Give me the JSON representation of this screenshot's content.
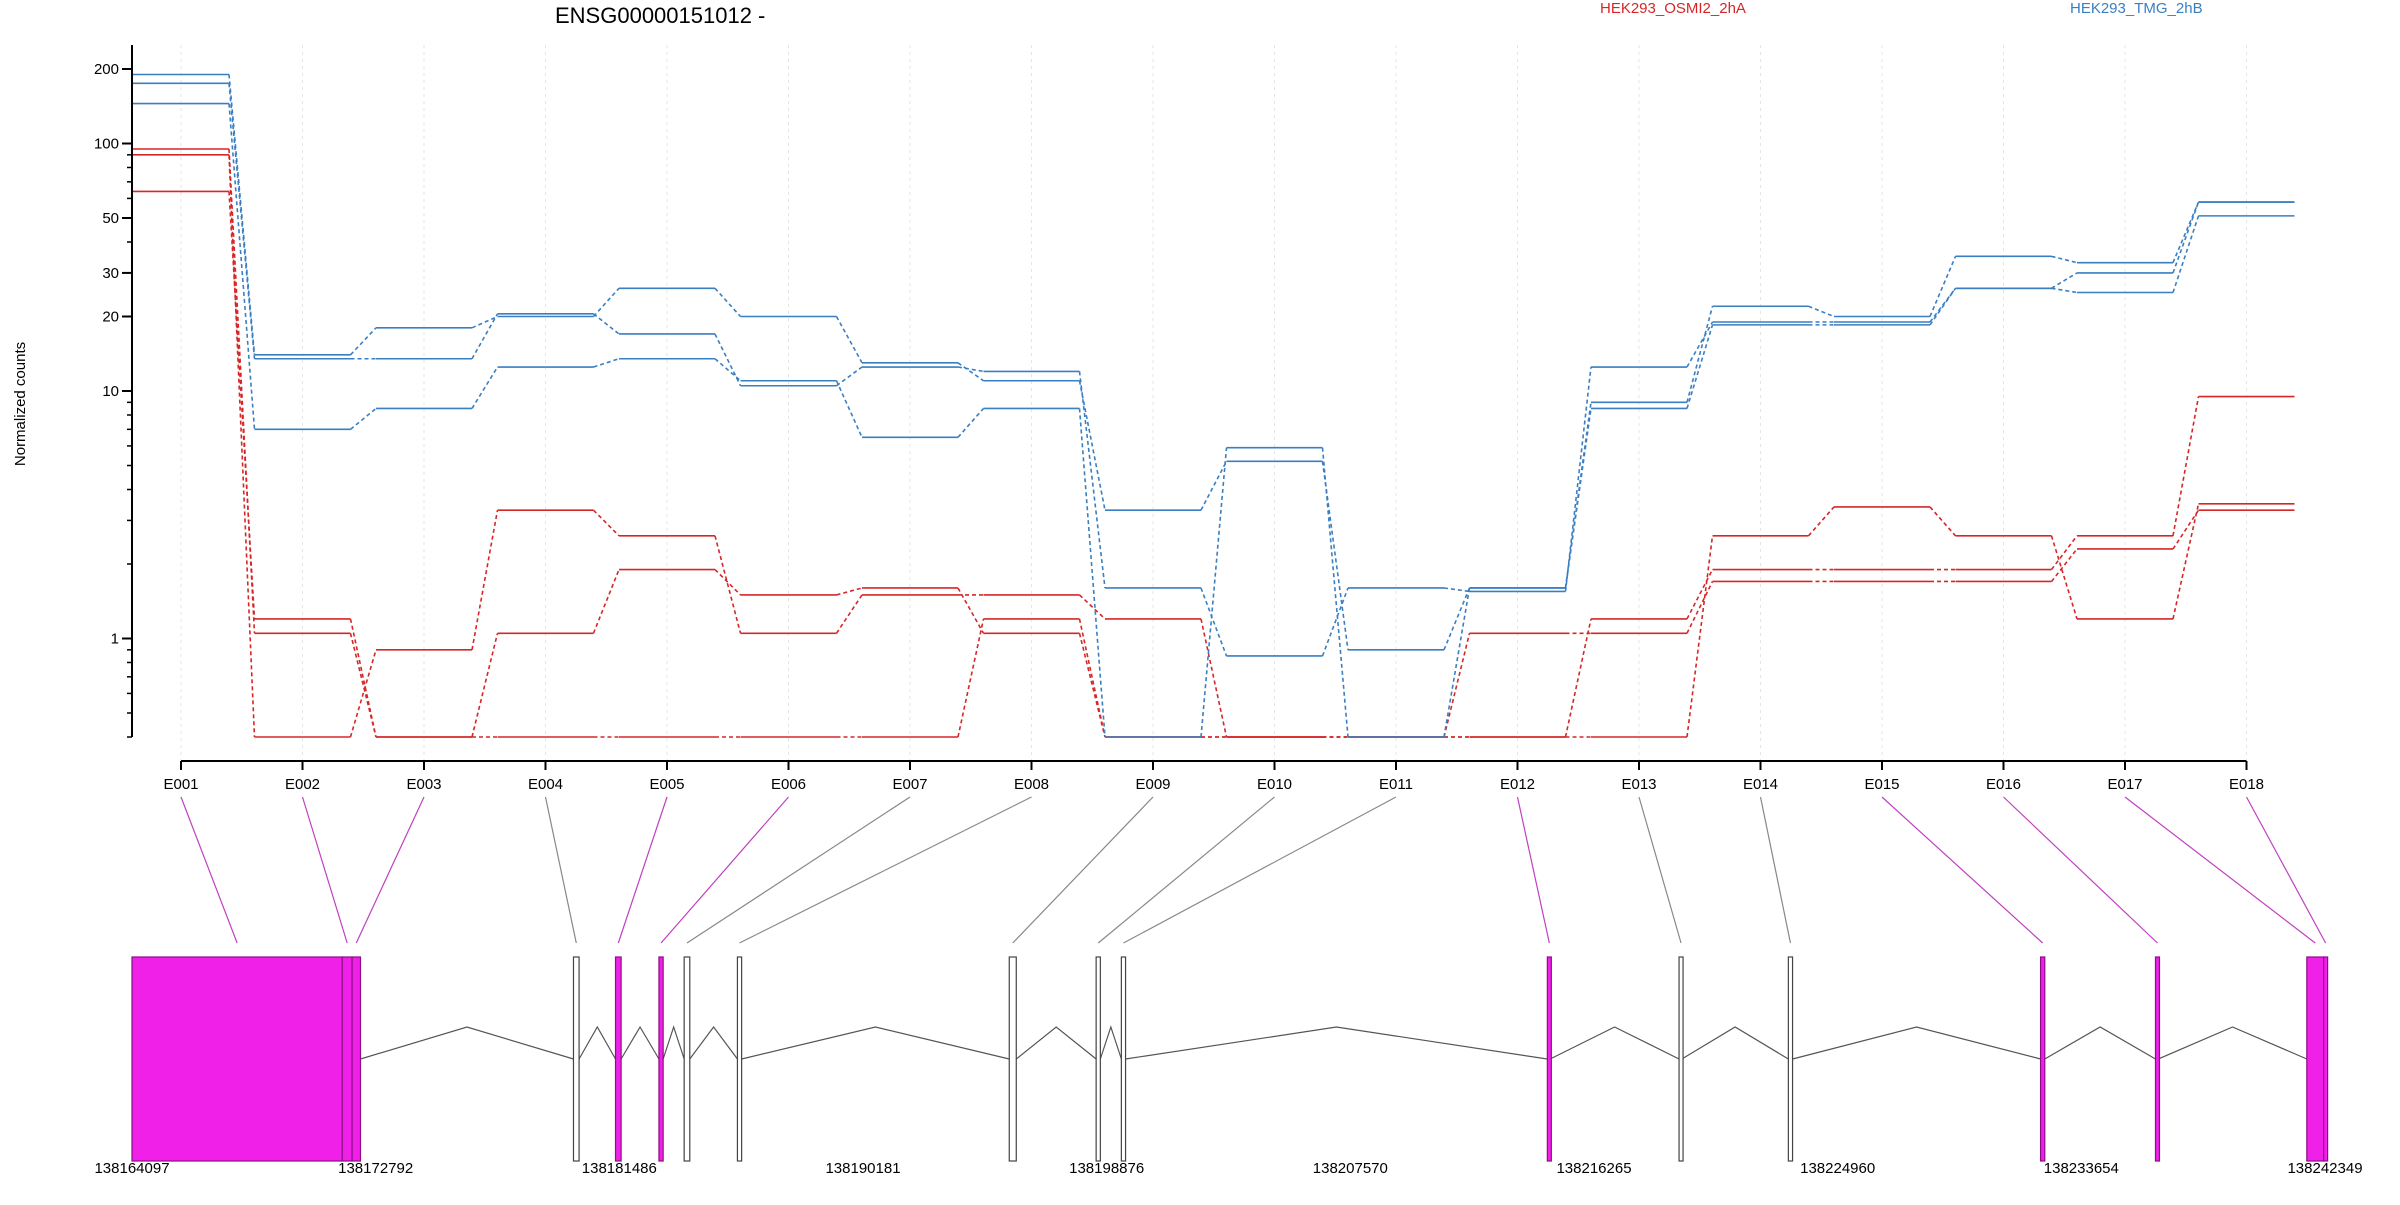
{
  "chart_data": [
    {
      "type": "line",
      "title": "ENSG00000151012 -",
      "xlabel": "",
      "ylabel": "Normalized counts",
      "yscale": "log",
      "ylim": [
        0.4,
        250
      ],
      "grid": "vertical-dashed",
      "legend_placement": "top",
      "categories": [
        "E001",
        "E002",
        "E003",
        "E004",
        "E005",
        "E006",
        "E007",
        "E008",
        "E009",
        "E010",
        "E011",
        "E012",
        "E013",
        "E014",
        "E015",
        "E016",
        "E017",
        "E018"
      ],
      "y_ticks": [
        1,
        10,
        20,
        30,
        50,
        100,
        200
      ],
      "y_tick_labels": [
        "1",
        "10",
        "20",
        "30",
        "50",
        "100",
        "200"
      ],
      "series": [
        {
          "name": "HEK293_OSMI2_2hA",
          "color": "#d62728",
          "values": [
            95,
            1.05,
            0.4,
            1.05,
            1.9,
            1.5,
            1.6,
            1.05,
            0.4,
            0.4,
            0.4,
            1.05,
            1.05,
            1.7,
            1.7,
            1.7,
            2.3,
            3.3
          ]
        },
        {
          "color": "#d62728",
          "values": [
            90,
            0.4,
            0.9,
            3.3,
            2.6,
            1.05,
            1.5,
            1.5,
            1.2,
            0.4,
            0.4,
            0.4,
            0.4,
            2.6,
            3.4,
            2.6,
            1.2,
            3.5
          ]
        },
        {
          "color": "#d62728",
          "values": [
            64,
            1.2,
            0.4,
            0.4,
            0.4,
            0.4,
            0.4,
            1.2,
            0.4,
            0.4,
            0.4,
            0.4,
            1.2,
            1.9,
            1.9,
            1.9,
            2.6,
            9.5
          ]
        },
        {
          "name": "HEK293_TMG_2hB",
          "color": "#3a7fc1",
          "values": [
            190,
            14,
            18,
            20,
            26,
            20,
            13,
            11,
            3.3,
            5.2,
            0.9,
            1.6,
            9,
            22,
            20,
            35,
            33,
            58
          ]
        },
        {
          "color": "#3a7fc1",
          "values": [
            175,
            13.5,
            13.5,
            20.5,
            17,
            10.5,
            12.5,
            12,
            1.6,
            0.85,
            1.6,
            1.55,
            12.5,
            19,
            19,
            26,
            25,
            51
          ]
        },
        {
          "color": "#3a7fc1",
          "values": [
            145,
            7,
            8.5,
            12.5,
            13.5,
            11,
            6.5,
            8.5,
            0.4,
            5.9,
            0.4,
            1.6,
            8.5,
            18.5,
            18.5,
            26,
            30,
            58
          ]
        }
      ]
    },
    {
      "type": "gene_model",
      "x_ticks": [
        "138164097",
        "138172792",
        "138181486",
        "138190181",
        "138198876",
        "138207570",
        "138216265",
        "138224960",
        "138233654",
        "138242349"
      ],
      "xlim": [
        138164097,
        138242349
      ],
      "highlight_color": "#f020e8",
      "exons": [
        {
          "id": "E001",
          "start": 138164097,
          "end": 138171600,
          "highlight": true
        },
        {
          "id": "E002",
          "start": 138171600,
          "end": 138171950,
          "highlight": true
        },
        {
          "id": "E003",
          "start": 138171950,
          "end": 138172250,
          "highlight": true
        },
        {
          "id": "E004",
          "start": 138179850,
          "end": 138180050,
          "highlight": false
        },
        {
          "id": "E005",
          "start": 138181350,
          "end": 138181550,
          "highlight": true
        },
        {
          "id": "E006",
          "start": 138182900,
          "end": 138183050,
          "highlight": true
        },
        {
          "id": "E007",
          "start": 138183800,
          "end": 138184000,
          "highlight": false
        },
        {
          "id": "E008",
          "start": 138185700,
          "end": 138185850,
          "highlight": false
        },
        {
          "id": "E009",
          "start": 138195400,
          "end": 138195650,
          "highlight": false
        },
        {
          "id": "E010",
          "start": 138198500,
          "end": 138198650,
          "highlight": false
        },
        {
          "id": "E011",
          "start": 138199400,
          "end": 138199550,
          "highlight": false
        },
        {
          "id": "E012",
          "start": 138214600,
          "end": 138214700,
          "highlight": true
        },
        {
          "id": "E013",
          "start": 138219300,
          "end": 138219400,
          "highlight": false
        },
        {
          "id": "E014",
          "start": 138223200,
          "end": 138223350,
          "highlight": false
        },
        {
          "id": "E015",
          "start": 138232200,
          "end": 138232350,
          "highlight": true
        },
        {
          "id": "E016",
          "start": 138236300,
          "end": 138236400,
          "highlight": true
        },
        {
          "id": "E017",
          "start": 138241700,
          "end": 138242300,
          "highlight": true
        },
        {
          "id": "E018",
          "start": 138242300,
          "end": 138242349,
          "highlight": true
        }
      ]
    }
  ]
}
